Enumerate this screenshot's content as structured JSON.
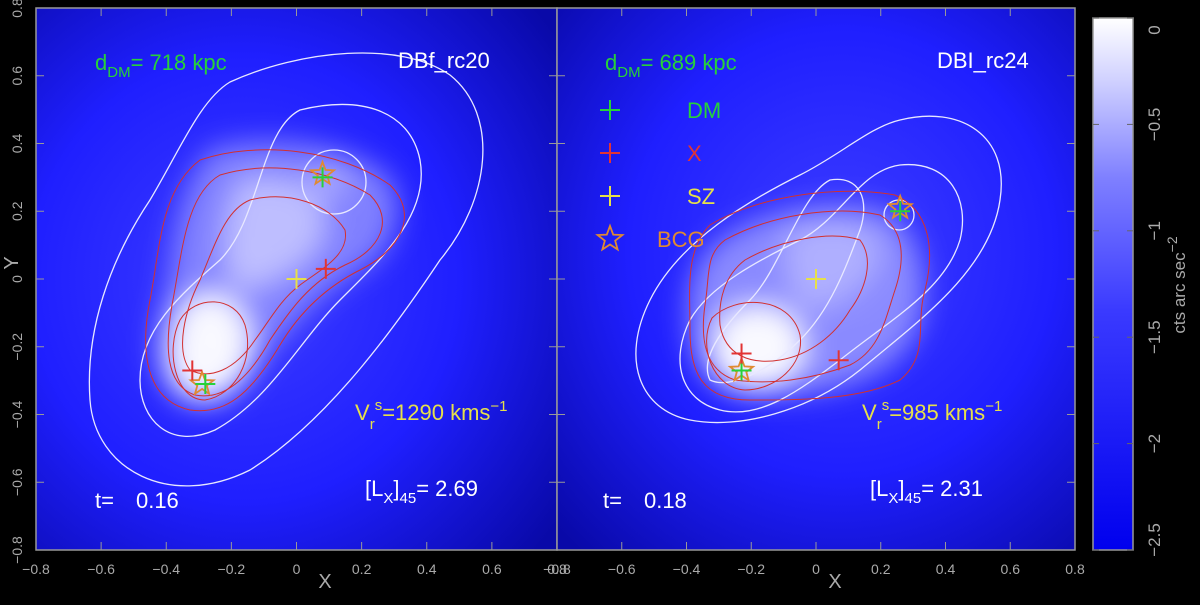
{
  "colors": {
    "background": "#000000",
    "map_blue": "#1a1aff",
    "contour_white": "#e8e8ff",
    "contour_red": "#d2302f",
    "dm_green": "#27d13a",
    "x_red": "#e23434",
    "sz_yellow": "#e6e04a",
    "bcg_orange": "#e08a32",
    "text_green": "#27d13a",
    "text_yellow": "#e6e04a",
    "text_white": "#ffffff",
    "axis_gray": "#aaaaaa"
  },
  "chart_data": {
    "type": "heatmap",
    "colormap": "blue-to-white",
    "axes": {
      "xlabel": "X",
      "ylabel": "Y",
      "xlim": [
        -0.8,
        0.8
      ],
      "ylim": [
        -0.8,
        0.8
      ],
      "xticks": [
        -0.8,
        -0.6,
        -0.4,
        -0.2,
        0,
        0.2,
        0.4,
        0.6,
        0.8
      ],
      "yticks": [
        -0.8,
        -0.6,
        -0.4,
        -0.2,
        0,
        0.2,
        0.4,
        0.6,
        0.8
      ]
    },
    "colorbar": {
      "label": "cts arc sec",
      "label_exponent": "−2",
      "range": [
        -2.5,
        0
      ],
      "ticks": [
        0,
        -0.5,
        -1,
        -1.5,
        -2,
        -2.5
      ],
      "tick_labels": [
        "0",
        "−0.5",
        "−1",
        "−1.5",
        "−2",
        "−2.5"
      ]
    },
    "legend": {
      "placement": "upper-left of right panel",
      "entries": [
        {
          "marker": "plus",
          "color": "green",
          "label": "DM"
        },
        {
          "marker": "plus",
          "color": "red",
          "label": "X"
        },
        {
          "marker": "plus",
          "color": "yellow",
          "label": "SZ"
        },
        {
          "marker": "star",
          "color": "orange",
          "label": "BCG"
        }
      ]
    },
    "panels": [
      {
        "name": "DBf_rc20",
        "d_dm": {
          "prefix": "d",
          "sub": "DM",
          "value": "= 718 kpc"
        },
        "v_r": {
          "v": "V",
          "sub": "r",
          "sup": "s",
          "value": "=1290 kms",
          "exp": "−1"
        },
        "lx": {
          "open": "[L",
          "sub": "X",
          "close": "]",
          "sub2": "45",
          "value": "= 2.69"
        },
        "time": {
          "label": "t=",
          "value": "0.16"
        },
        "markers": {
          "dm": [
            [
              0.08,
              0.3
            ],
            [
              -0.28,
              -0.31
            ]
          ],
          "x": [
            [
              0.09,
              0.03
            ],
            [
              -0.32,
              -0.27
            ]
          ],
          "sz": [
            [
              0.0,
              0.0
            ]
          ],
          "bcg": [
            [
              0.08,
              0.31
            ],
            [
              -0.29,
              -0.31
            ]
          ]
        }
      },
      {
        "name": "DBI_rc24",
        "d_dm": {
          "prefix": "d",
          "sub": "DM",
          "value": "= 689 kpc"
        },
        "v_r": {
          "v": "V",
          "sub": "r",
          "sup": "s",
          "value": "=985 kms",
          "exp": "−1"
        },
        "lx": {
          "open": "[L",
          "sub": "X",
          "close": "]",
          "sub2": "45",
          "value": "= 2.31"
        },
        "time": {
          "label": "t=",
          "value": "0.18"
        },
        "markers": {
          "dm": [
            [
              0.26,
              0.2
            ],
            [
              -0.23,
              -0.27
            ]
          ],
          "x": [
            [
              0.07,
              -0.24
            ],
            [
              -0.23,
              -0.22
            ]
          ],
          "sz": [
            [
              0.0,
              0.0
            ]
          ],
          "bcg": [
            [
              0.26,
              0.21
            ],
            [
              -0.23,
              -0.27
            ]
          ]
        }
      }
    ]
  }
}
